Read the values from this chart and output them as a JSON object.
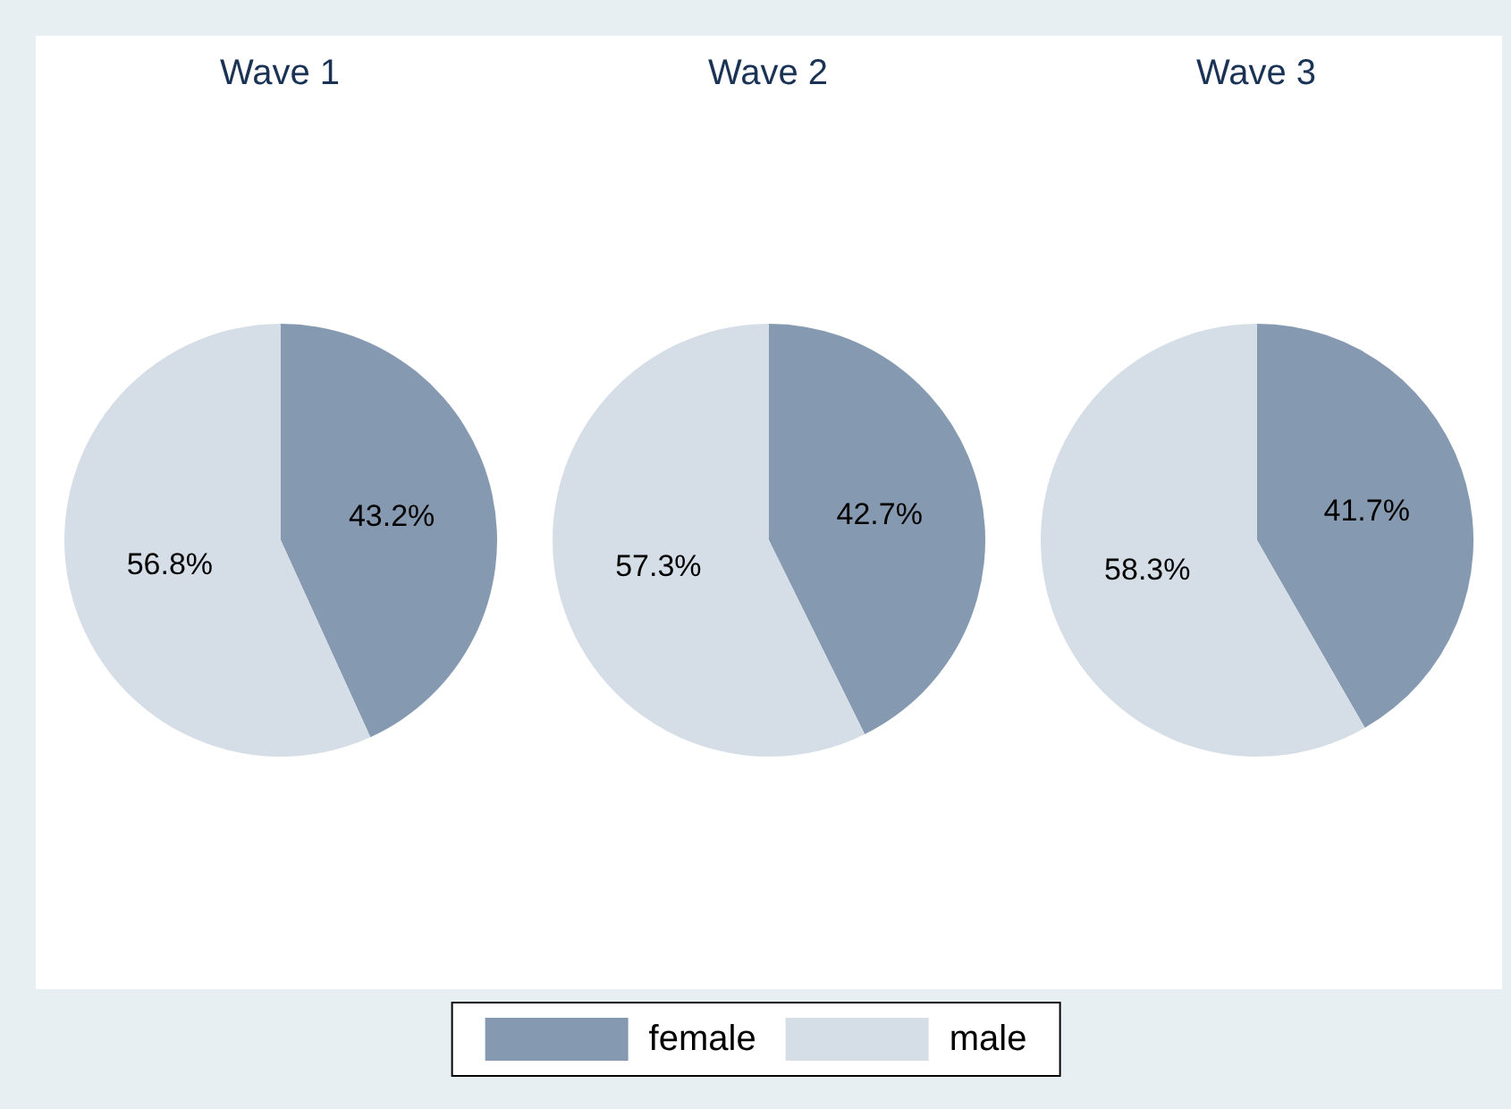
{
  "chart_data": [
    {
      "type": "pie",
      "title": "Wave 1",
      "categories": [
        "female",
        "male"
      ],
      "values": [
        43.2,
        56.8
      ],
      "colors": [
        "#8599b0",
        "#d5dee6"
      ],
      "value_labels": [
        "43.2%",
        "56.8%"
      ],
      "legend": "bottom"
    },
    {
      "type": "pie",
      "title": "Wave 2",
      "categories": [
        null,
        null
      ],
      "values": [
        42.7,
        57.3
      ],
      "colors": [
        "#8599b0",
        "#d5dee6"
      ],
      "value_labels": [
        "42.7%",
        "57.3%"
      ]
    },
    {
      "type": "pie",
      "title": "Wave 3",
      "categories": [
        null,
        null
      ],
      "values": [
        41.7,
        58.3
      ],
      "colors": [
        "#8599b0",
        "#d5dee6"
      ],
      "value_labels": [
        "41.7%",
        "58.3%"
      ]
    }
  ]
}
